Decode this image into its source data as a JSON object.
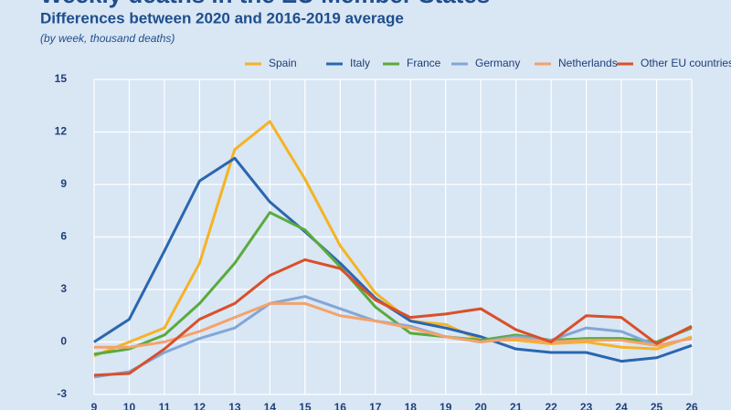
{
  "chart_data": {
    "type": "line",
    "title": "Weekly deaths in the EU Member States",
    "subtitle": "Differences between  2020 and 2016-2019 average",
    "note": "(by week, thousand deaths)",
    "x": [
      9,
      10,
      11,
      12,
      13,
      14,
      15,
      16,
      17,
      18,
      19,
      20,
      21,
      22,
      23,
      24,
      25,
      26
    ],
    "xlim": [
      9,
      26
    ],
    "ylim": [
      -3,
      15
    ],
    "yticks": [
      -3,
      0,
      3,
      6,
      9,
      12,
      15
    ],
    "grid": true,
    "legend": "top",
    "series": [
      {
        "name": "Spain",
        "color": "#f5b324",
        "values": [
          -0.8,
          0.0,
          0.8,
          4.5,
          11.0,
          12.6,
          9.3,
          5.5,
          2.8,
          1.2,
          1.0,
          0.1,
          0.1,
          -0.1,
          0.0,
          -0.3,
          -0.4,
          0.3
        ]
      },
      {
        "name": "Italy",
        "color": "#2a66b0",
        "values": [
          0.0,
          1.3,
          5.2,
          9.2,
          10.5,
          8.0,
          6.3,
          4.5,
          2.5,
          1.2,
          0.8,
          0.3,
          -0.4,
          -0.6,
          -0.6,
          -1.1,
          -0.9,
          -0.2
        ]
      },
      {
        "name": "France",
        "color": "#5aab3c",
        "values": [
          -0.7,
          -0.4,
          0.4,
          2.2,
          4.5,
          7.4,
          6.4,
          4.3,
          2.0,
          0.5,
          0.3,
          0.1,
          0.4,
          0.1,
          0.2,
          0.2,
          0.0,
          0.8
        ]
      },
      {
        "name": "Germany",
        "color": "#82a6d8",
        "values": [
          -2.0,
          -1.7,
          -0.6,
          0.2,
          0.8,
          2.2,
          2.6,
          1.9,
          1.2,
          0.9,
          0.3,
          0.0,
          0.3,
          0.1,
          0.8,
          0.6,
          -0.2,
          0.2
        ]
      },
      {
        "name": "Netherlands",
        "color": "#f4a26b",
        "values": [
          -0.3,
          -0.3,
          0.0,
          0.6,
          1.4,
          2.2,
          2.2,
          1.5,
          1.2,
          0.8,
          0.3,
          0.0,
          0.2,
          0.0,
          0.1,
          0.1,
          -0.2,
          0.2
        ]
      },
      {
        "name": "Other EU countries*",
        "color": "#d9502a",
        "values": [
          -1.9,
          -1.8,
          -0.4,
          1.3,
          2.2,
          3.8,
          4.7,
          4.2,
          2.4,
          1.4,
          1.6,
          1.9,
          0.7,
          0.0,
          1.5,
          1.4,
          -0.1,
          0.9
        ]
      }
    ]
  }
}
